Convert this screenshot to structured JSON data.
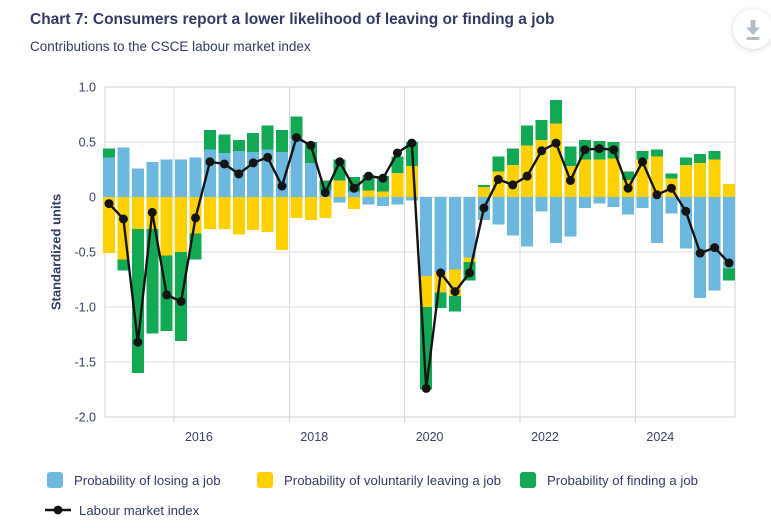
{
  "header": {
    "title": "Chart 7: Consumers report a lower likelihood of leaving or finding a job",
    "subtitle": "Contributions to the CSCE labour market index"
  },
  "toolbar": {
    "download_icon": "download-icon"
  },
  "chart_data": {
    "type": "bar",
    "stacked": true,
    "grid": true,
    "legend_position": "bottom",
    "ylabel": "Standardized units",
    "ylim": [
      -2.0,
      1.0
    ],
    "colors": {
      "losing": "#6CB8DF",
      "leaving": "#FFD100",
      "finding": "#12A854",
      "line": "#141414",
      "grid": "#DCDCDC",
      "border": "#CFCFCF",
      "text": "#333A63"
    },
    "categories": [
      "2014Q4",
      "2015Q1",
      "2015Q2",
      "2015Q3",
      "2015Q4",
      "2016Q1",
      "2016Q2",
      "2016Q3",
      "2016Q4",
      "2017Q1",
      "2017Q2",
      "2017Q3",
      "2017Q4",
      "2018Q1",
      "2018Q2",
      "2018Q3",
      "2018Q4",
      "2019Q1",
      "2019Q2",
      "2019Q3",
      "2019Q4",
      "2020Q1",
      "2020Q2",
      "2020Q3",
      "2020Q4",
      "2021Q1",
      "2021Q2",
      "2021Q3",
      "2021Q4",
      "2022Q1",
      "2022Q2",
      "2022Q3",
      "2022Q4",
      "2023Q1",
      "2023Q2",
      "2023Q3",
      "2023Q4",
      "2024Q1",
      "2024Q2",
      "2024Q3",
      "2024Q4",
      "2025Q1",
      "2025Q2",
      "2025Q3"
    ],
    "series": [
      {
        "name": "Probability of losing a job",
        "color": "#6CB8DF",
        "values": [
          0.36,
          0.45,
          0.26,
          0.32,
          0.34,
          0.34,
          0.36,
          0.43,
          0.4,
          0.42,
          0.41,
          0.43,
          0.41,
          0.53,
          0.31,
          0.06,
          -0.05,
          0.05,
          -0.07,
          -0.08,
          -0.07,
          -0.03,
          -0.72,
          -0.68,
          -0.66,
          -0.55,
          -0.21,
          -0.25,
          -0.35,
          -0.45,
          -0.13,
          -0.42,
          -0.36,
          -0.1,
          -0.06,
          -0.09,
          -0.16,
          -0.1,
          -0.42,
          -0.15,
          -0.47,
          -0.92,
          -0.85,
          -0.65
        ]
      },
      {
        "name": "Probability of voluntarily leaving a job",
        "color": "#FFD100",
        "values": [
          -0.51,
          -0.57,
          -0.29,
          -0.29,
          -0.53,
          -0.5,
          -0.33,
          -0.29,
          -0.29,
          -0.34,
          -0.3,
          -0.32,
          -0.48,
          -0.19,
          -0.21,
          -0.19,
          0.15,
          -0.11,
          0.06,
          0.05,
          0.22,
          0.28,
          -0.28,
          -0.19,
          -0.24,
          -0.04,
          0.09,
          0.23,
          0.29,
          0.47,
          0.52,
          0.67,
          0.28,
          0.34,
          0.34,
          0.35,
          0.155,
          0.34,
          0.37,
          0.17,
          0.29,
          0.31,
          0.34,
          0.12
        ]
      },
      {
        "name": "Probability of finding a job",
        "color": "#12A854",
        "values": [
          0.08,
          -0.1,
          -1.31,
          -0.95,
          -0.69,
          -0.81,
          -0.24,
          0.18,
          0.17,
          0.1,
          0.17,
          0.22,
          0.2,
          0.2,
          0.19,
          0.09,
          0.19,
          0.13,
          0.14,
          0.14,
          0.15,
          0.22,
          -0.75,
          -0.14,
          -0.14,
          -0.17,
          0.02,
          0.14,
          0.15,
          0.18,
          0.18,
          0.21,
          0.18,
          0.18,
          0.17,
          0.15,
          0.075,
          0.08,
          0.06,
          0.045,
          0.07,
          0.08,
          0.08,
          -0.11
        ]
      }
    ],
    "line_series": {
      "name": "Labour market index",
      "color": "#141414",
      "values": [
        -0.06,
        -0.2,
        -1.32,
        -0.14,
        -0.89,
        -0.95,
        -0.19,
        0.32,
        0.3,
        0.21,
        0.31,
        0.36,
        0.1,
        0.54,
        0.47,
        0.04,
        0.32,
        0.08,
        0.19,
        0.17,
        0.4,
        0.49,
        -1.74,
        -0.69,
        -0.86,
        -0.69,
        -0.1,
        0.16,
        0.11,
        0.19,
        0.42,
        0.49,
        0.15,
        0.43,
        0.44,
        0.43,
        0.08,
        0.32,
        0.02,
        0.08,
        -0.13,
        -0.51,
        -0.46,
        -0.6
      ]
    },
    "yticks": [
      {
        "label": "1.0",
        "value": 1.0
      },
      {
        "label": "0.5",
        "value": 0.5
      },
      {
        "label": "0",
        "value": 0.0
      },
      {
        "label": "-0.5",
        "value": -0.5
      },
      {
        "label": "-1.0",
        "value": -1.0
      },
      {
        "label": "-1.5",
        "value": -1.5
      },
      {
        "label": "-2.0",
        "value": -2.0
      }
    ],
    "xticks": [
      {
        "label": "2016",
        "index": 5
      },
      {
        "label": "2018",
        "index": 13
      },
      {
        "label": "2020",
        "index": 21
      },
      {
        "label": "2022",
        "index": 29
      },
      {
        "label": "2024",
        "index": 37
      }
    ]
  }
}
